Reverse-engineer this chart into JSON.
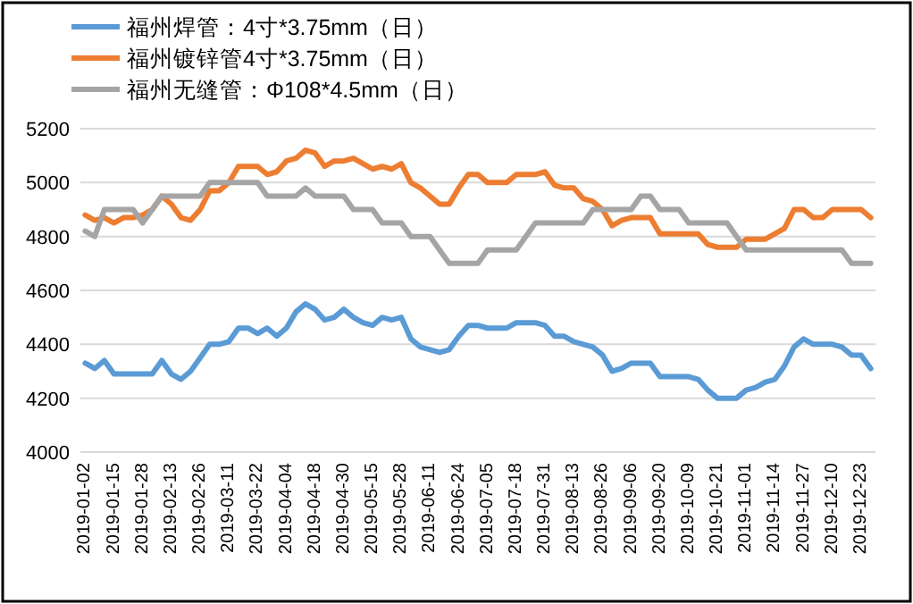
{
  "chart_data": {
    "type": "line",
    "categories": [
      "2019-01-02",
      null,
      null,
      "2019-01-15",
      null,
      null,
      "2019-01-28",
      null,
      null,
      "2019-02-13",
      null,
      null,
      "2019-02-26",
      null,
      null,
      "2019-03-11",
      null,
      null,
      "2019-03-22",
      null,
      null,
      "2019-04-04",
      null,
      null,
      "2019-04-18",
      null,
      null,
      "2019-04-30",
      null,
      null,
      "2019-05-15",
      null,
      null,
      "2019-05-28",
      null,
      null,
      "2019-06-11",
      null,
      null,
      "2019-06-24",
      null,
      null,
      "2019-07-05",
      null,
      null,
      "2019-07-18",
      null,
      null,
      "2019-07-31",
      null,
      null,
      "2019-08-13",
      null,
      null,
      "2019-08-26",
      null,
      null,
      "2019-09-06",
      null,
      null,
      "2019-09-20",
      null,
      null,
      "2019-10-09",
      null,
      null,
      "2019-10-21",
      null,
      null,
      "2019-11-01",
      null,
      null,
      "2019-11-14",
      null,
      null,
      "2019-11-27",
      null,
      null,
      "2019-12-10",
      null,
      null,
      "2019-12-23",
      null
    ],
    "series": [
      {
        "name": "福州焊管：4寸*3.75mm（日）",
        "color": "#5b9bd5",
        "values": [
          4330,
          4310,
          4340,
          4290,
          4290,
          4290,
          4290,
          4290,
          4340,
          4290,
          4270,
          4300,
          4350,
          4400,
          4400,
          4410,
          4460,
          4460,
          4440,
          4460,
          4430,
          4460,
          4520,
          4550,
          4530,
          4490,
          4500,
          4530,
          4500,
          4480,
          4470,
          4500,
          4490,
          4500,
          4420,
          4390,
          4380,
          4370,
          4380,
          4430,
          4470,
          4470,
          4460,
          4460,
          4460,
          4480,
          4480,
          4480,
          4470,
          4430,
          4430,
          4410,
          4400,
          4390,
          4360,
          4300,
          4310,
          4330,
          4330,
          4330,
          4280,
          4280,
          4280,
          4280,
          4270,
          4230,
          4200,
          4200,
          4200,
          4230,
          4240,
          4260,
          4270,
          4320,
          4390,
          4420,
          4400,
          4400,
          4400,
          4390,
          4360,
          4360,
          4310
        ]
      },
      {
        "name": "福州镀锌管4寸*3.75mm（日）",
        "color": "#ed7d31",
        "values": [
          4880,
          4860,
          4870,
          4850,
          4870,
          4870,
          4880,
          4900,
          4950,
          4920,
          4870,
          4860,
          4900,
          4970,
          4970,
          5000,
          5060,
          5060,
          5060,
          5030,
          5040,
          5080,
          5090,
          5120,
          5110,
          5060,
          5080,
          5080,
          5090,
          5070,
          5050,
          5060,
          5050,
          5070,
          5000,
          4980,
          4950,
          4920,
          4920,
          4980,
          5030,
          5030,
          5000,
          5000,
          5000,
          5030,
          5030,
          5030,
          5040,
          4990,
          4980,
          4980,
          4940,
          4930,
          4900,
          4840,
          4860,
          4870,
          4870,
          4870,
          4810,
          4810,
          4810,
          4810,
          4810,
          4770,
          4760,
          4760,
          4760,
          4790,
          4790,
          4790,
          4810,
          4830,
          4900,
          4900,
          4870,
          4870,
          4900,
          4900,
          4900,
          4900,
          4870
        ]
      },
      {
        "name": "福州无缝管：Φ108*4.5mm（日）",
        "color": "#a5a5a5",
        "values": [
          4820,
          4800,
          4900,
          4900,
          4900,
          4900,
          4850,
          4900,
          4950,
          4950,
          4950,
          4950,
          4950,
          5000,
          5000,
          5000,
          5000,
          5000,
          5000,
          4950,
          4950,
          4950,
          4950,
          4980,
          4950,
          4950,
          4950,
          4950,
          4900,
          4900,
          4900,
          4850,
          4850,
          4850,
          4800,
          4800,
          4800,
          4750,
          4700,
          4700,
          4700,
          4700,
          4750,
          4750,
          4750,
          4750,
          4800,
          4850,
          4850,
          4850,
          4850,
          4850,
          4850,
          4900,
          4900,
          4900,
          4900,
          4900,
          4950,
          4950,
          4900,
          4900,
          4900,
          4850,
          4850,
          4850,
          4850,
          4850,
          4800,
          4750,
          4750,
          4750,
          4750,
          4750,
          4750,
          4750,
          4750,
          4750,
          4750,
          4750,
          4700,
          4700,
          4700
        ]
      }
    ],
    "ylim": [
      4000,
      5200
    ],
    "yticks": [
      4000,
      4200,
      4400,
      4600,
      4800,
      5000,
      5200
    ],
    "grid": "y",
    "legend": "top left"
  }
}
